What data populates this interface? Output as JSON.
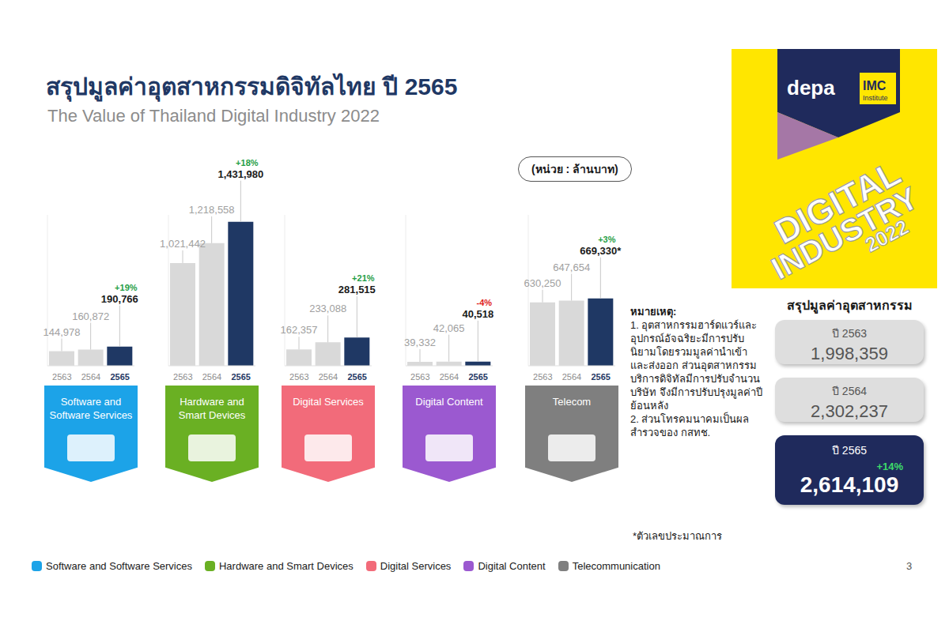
{
  "title": "สรุปมูลค่าอุตสาหกรรมดิจิทัลไทย ปี 2565",
  "subtitle": "The Value of Thailand Digital Industry 2022",
  "unit": "(หน่วย : ล้านบาท)",
  "legend": "bottom",
  "chart_data": [
    {
      "type": "bar",
      "title": "Software and Software Services",
      "legend_label": "Software and Software Services",
      "color": "#1ca3e8",
      "categories": [
        "2563",
        "2564",
        "2565"
      ],
      "values": [
        144978,
        160872,
        190766
      ],
      "value_labels": [
        "144,978",
        "160,872",
        "190,766"
      ],
      "colors": [
        "#d9d9d9",
        "#d9d9d9",
        "#1f3864"
      ],
      "annotation": "+19%",
      "data_labels": true,
      "ylim": [
        0,
        1500000
      ],
      "tick_labels": "x"
    },
    {
      "type": "bar",
      "title": "Hardware and Smart Devices",
      "legend_label": "Hardware and Smart Devices",
      "color": "#6ab023",
      "categories": [
        "2563",
        "2564",
        "2565"
      ],
      "values": [
        1021442,
        1218558,
        1431980
      ],
      "value_labels": [
        "1,021,442",
        "1,218,558",
        "1,431,980"
      ],
      "colors": [
        "#d9d9d9",
        "#d9d9d9",
        "#1f3864"
      ],
      "annotation": "+18%",
      "data_labels": true,
      "ylim": [
        0,
        1500000
      ],
      "tick_labels": "x"
    },
    {
      "type": "bar",
      "title": "Digital Services",
      "legend_label": "Digital Services",
      "color": "#f26b7a",
      "categories": [
        "2563",
        "2564",
        "2565"
      ],
      "values": [
        162357,
        233088,
        281515
      ],
      "value_labels": [
        "162,357",
        "233,088",
        "281,515"
      ],
      "colors": [
        "#d9d9d9",
        "#d9d9d9",
        "#1f3864"
      ],
      "annotation": "+21%",
      "data_labels": true,
      "ylim": [
        0,
        1500000
      ],
      "tick_labels": "x"
    },
    {
      "type": "bar",
      "title": "Digital Content",
      "legend_label": "Digital Content",
      "color": "#9b59d0",
      "categories": [
        "2563",
        "2564",
        "2565"
      ],
      "values": [
        39332,
        42065,
        40518
      ],
      "value_labels": [
        "39,332",
        "42,065",
        "40,518"
      ],
      "colors": [
        "#d9d9d9",
        "#d9d9d9",
        "#1f3864"
      ],
      "annotation": "-4%",
      "data_labels": true,
      "ylim": [
        0,
        1500000
      ],
      "tick_labels": "x"
    },
    {
      "type": "bar",
      "title": "Telecom",
      "legend_label": "Telecommunication",
      "color": "#7f7f7f",
      "categories": [
        "2563",
        "2564",
        "2565"
      ],
      "values": [
        630250,
        647654,
        669330
      ],
      "value_labels": [
        "630,250",
        "647,654",
        "669,330*"
      ],
      "colors": [
        "#d9d9d9",
        "#d9d9d9",
        "#1f3864"
      ],
      "annotation": "+3%",
      "data_labels": true,
      "ylim": [
        0,
        1500000
      ],
      "tick_labels": "x"
    }
  ],
  "notes_title": "หมายเหตุ:",
  "notes": [
    "1. อุตสาหกรรมฮาร์ดแวร์และอุปกรณ์อัจฉริยะมีการปรับนิยามโดยรวมมูลค่านำเข้าและส่งออก ส่วนอุตสาหกรรมบริการดิจิทัลมีการปรับจำนวนบริษัท จึงมีการปรับปรุงมูลค่าปีย้อนหลัง",
    "2. ส่วนโทรคมนาคมเป็นผลสำรวจของ กสทช."
  ],
  "footnote": "*ตัวเลขประมาณการ",
  "summary": {
    "title": "สรุปมูลค่าอุตสาหกรรม",
    "items": [
      {
        "label": "ปี 2563",
        "value": "1,998,359"
      },
      {
        "label": "ปี 2564",
        "value": "2,302,237"
      },
      {
        "label": "ปี 2565",
        "value": "2,614,109",
        "change": "+14%"
      }
    ]
  },
  "brand": {
    "logo": "depa",
    "partner": "IMC",
    "partner_sub": "Institute",
    "banner": [
      "DIGITAL",
      "INDUSTRY",
      "2022"
    ]
  },
  "page": "3"
}
